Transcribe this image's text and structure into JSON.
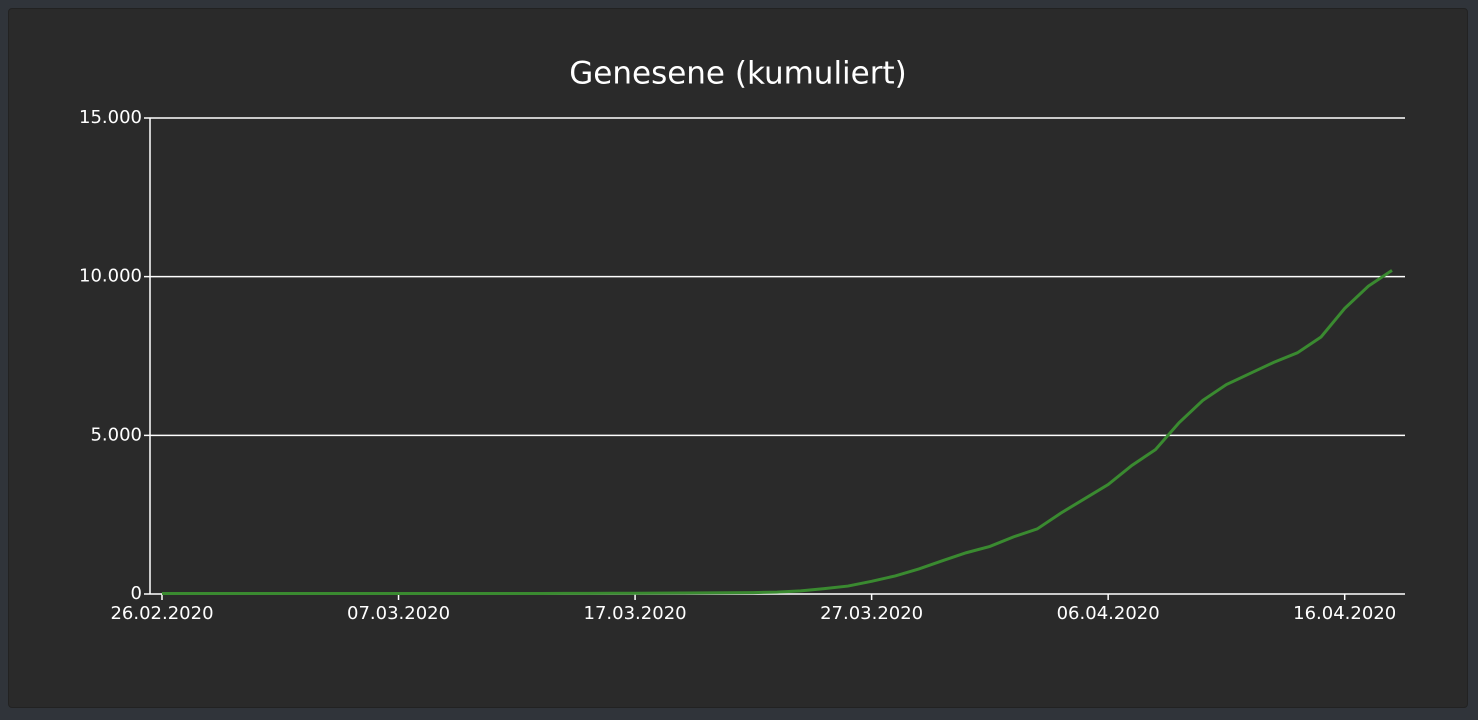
{
  "chart_data": {
    "type": "line",
    "title": "Genesene (kumuliert)",
    "x": [
      "26.02.2020",
      "27.02.2020",
      "28.02.2020",
      "29.02.2020",
      "01.03.2020",
      "02.03.2020",
      "03.03.2020",
      "04.03.2020",
      "05.03.2020",
      "06.03.2020",
      "07.03.2020",
      "08.03.2020",
      "09.03.2020",
      "10.03.2020",
      "11.03.2020",
      "12.03.2020",
      "13.03.2020",
      "14.03.2020",
      "15.03.2020",
      "16.03.2020",
      "17.03.2020",
      "18.03.2020",
      "19.03.2020",
      "20.03.2020",
      "21.03.2020",
      "22.03.2020",
      "23.03.2020",
      "24.03.2020",
      "25.03.2020",
      "26.03.2020",
      "27.03.2020",
      "28.03.2020",
      "29.03.2020",
      "30.03.2020",
      "31.03.2020",
      "01.04.2020",
      "02.04.2020",
      "03.04.2020",
      "04.04.2020",
      "05.04.2020",
      "06.04.2020",
      "07.04.2020",
      "08.04.2020",
      "09.04.2020",
      "10.04.2020",
      "11.04.2020",
      "12.04.2020",
      "13.04.2020",
      "14.04.2020",
      "15.04.2020",
      "16.04.2020",
      "17.04.2020",
      "18.04.2020"
    ],
    "series": [
      {
        "name": "Genesene",
        "color": "#3a8a30",
        "values": [
          16,
          16,
          16,
          16,
          16,
          16,
          16,
          16,
          16,
          16,
          16,
          16,
          16,
          16,
          16,
          17,
          17,
          18,
          20,
          22,
          25,
          28,
          30,
          35,
          40,
          45,
          60,
          100,
          170,
          250,
          400,
          570,
          790,
          1050,
          1300,
          1500,
          1800,
          2050,
          2550,
          3000,
          3450,
          4050,
          4550,
          5400,
          6100,
          6600,
          6950,
          7300,
          7600,
          8100,
          9000,
          9700,
          10200
        ]
      }
    ],
    "xticks": [
      "26.02.2020",
      "07.03.2020",
      "17.03.2020",
      "27.03.2020",
      "06.04.2020",
      "16.04.2020"
    ],
    "ylim": [
      0,
      15000
    ],
    "yticks": [
      0,
      {
        "value": 5000,
        "label": "5.000"
      },
      {
        "value": 10000,
        "label": "10.000"
      },
      {
        "value": 15000,
        "label": "15.000"
      }
    ],
    "grid": true
  }
}
